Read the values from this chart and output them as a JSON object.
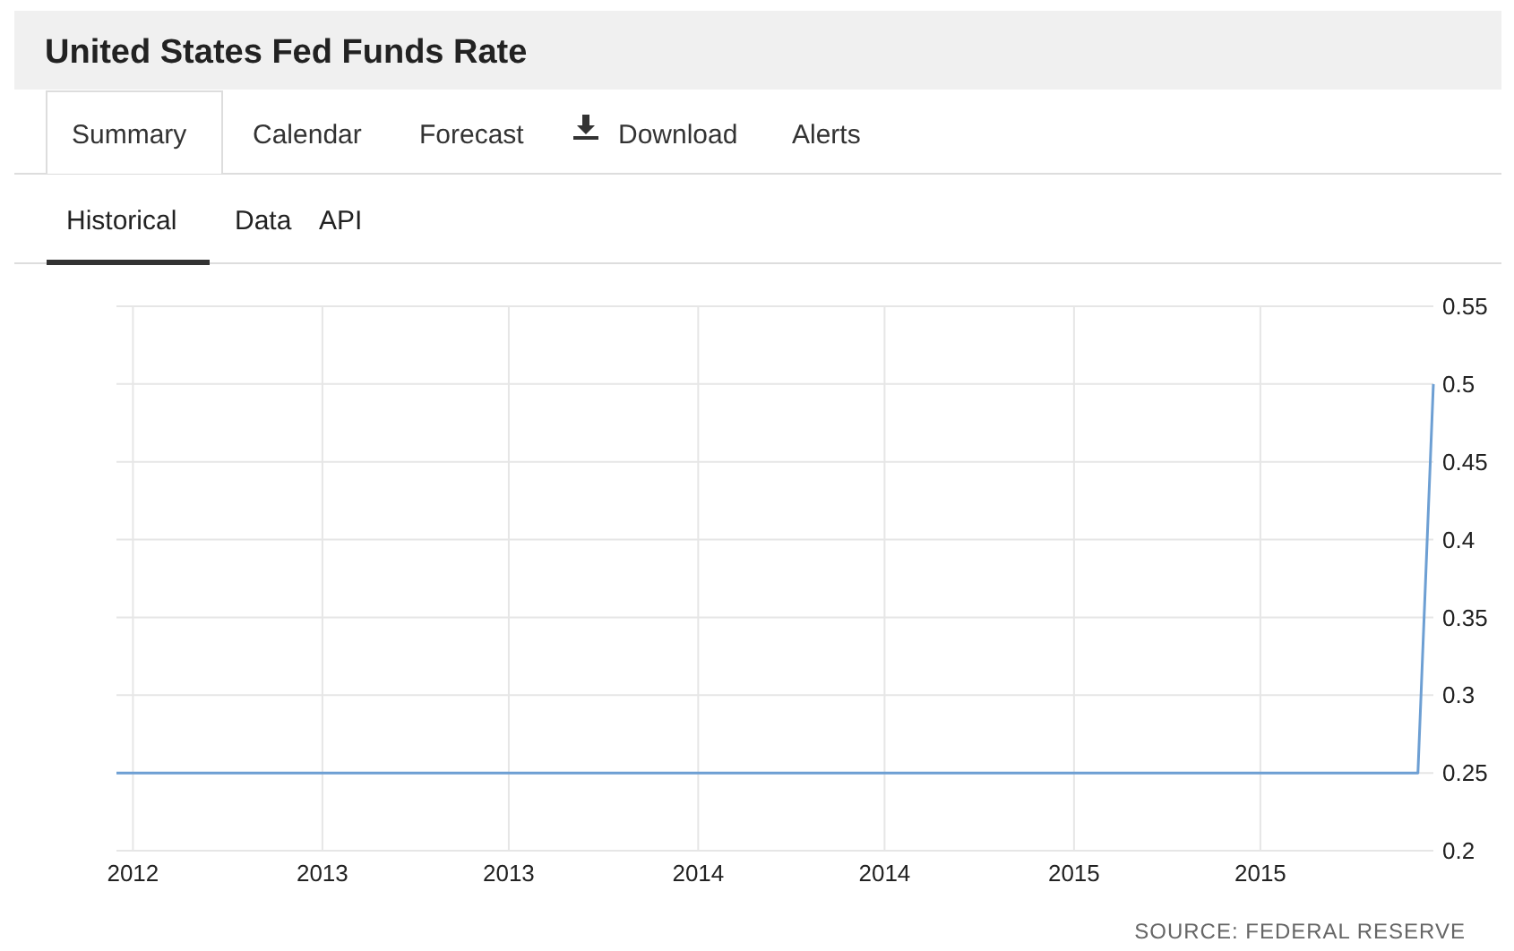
{
  "chart_data": {
    "type": "line",
    "title": "United States Fed Funds Rate",
    "annotations": [
      "Summary",
      "Calendar",
      "Forecast",
      "Download",
      "Alerts",
      "Historical",
      "Data",
      "API",
      "SOURCE: FEDERAL RESERVE"
    ],
    "x": [
      "2012-06-15",
      "2015-12-01",
      "2015-12-16"
    ],
    "series": [
      {
        "color": "#6d9fd3",
        "values": [
          0.25,
          0.25,
          0.5
        ]
      }
    ],
    "xlim": [
      "2012-06-15",
      "2015-12-16"
    ],
    "xticks": [
      {
        "value": "2012-07-01",
        "label": "2012"
      },
      {
        "value": "2013-01-01",
        "label": "2013"
      },
      {
        "value": "2013-07-01",
        "label": "2013"
      },
      {
        "value": "2014-01-01",
        "label": "2014"
      },
      {
        "value": "2014-07-01",
        "label": "2014"
      },
      {
        "value": "2015-01-01",
        "label": "2015"
      },
      {
        "value": "2015-07-01",
        "label": "2015"
      }
    ],
    "ylim": [
      0.2,
      0.55
    ],
    "yticks": [
      0.2,
      0.25,
      0.3,
      0.35,
      0.4,
      0.45,
      0.5,
      0.55
    ],
    "grid": true,
    "marker": "none",
    "line_style": "solid"
  }
}
